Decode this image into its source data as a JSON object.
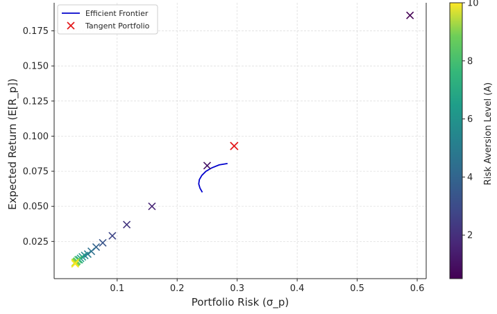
{
  "chart_data": {
    "type": "scatter",
    "xlabel": "Portfolio Risk (σ_p)",
    "ylabel": "Expected Return (E[R_p])",
    "xlim": [
      -0.005,
      0.615
    ],
    "ylim": [
      -0.0015,
      0.195
    ],
    "x_ticks": [
      "0.1",
      "0.2",
      "0.3",
      "0.4",
      "0.5",
      "0.6"
    ],
    "x_tick_values": [
      0.1,
      0.2,
      0.3,
      0.4,
      0.5,
      0.6
    ],
    "y_ticks": [
      "0.025",
      "0.050",
      "0.075",
      "0.100",
      "0.125",
      "0.150",
      "0.175"
    ],
    "y_tick_values": [
      0.025,
      0.05,
      0.075,
      0.1,
      0.125,
      0.15,
      0.175
    ],
    "grid": true,
    "legend_position": "top-left",
    "legend": [
      {
        "label": "Efficient Frontier",
        "symbol": "line",
        "color": "#0000cc"
      },
      {
        "label": "Tangent Portfolio",
        "symbol": "x",
        "color": "#e31a1c"
      }
    ],
    "efficient_frontier": {
      "name": "Efficient Frontier",
      "color": "#0000cc",
      "x": [
        0.242,
        0.238,
        0.236,
        0.237,
        0.241,
        0.248,
        0.258,
        0.27,
        0.284
      ],
      "y": [
        0.06,
        0.063,
        0.066,
        0.069,
        0.072,
        0.075,
        0.0775,
        0.0795,
        0.0805
      ]
    },
    "tangent_portfolio": {
      "name": "Tangent Portfolio",
      "color": "#e31a1c",
      "x": 0.295,
      "y": 0.093
    },
    "risk_aversion_points": {
      "A": [
        0.5,
        1.0,
        1.5,
        2.0,
        2.5,
        3.0,
        3.5,
        4.0,
        4.5,
        5.0,
        5.5,
        6.0,
        6.5,
        7.0,
        7.5,
        8.0,
        8.5,
        9.0,
        9.5,
        10.0
      ],
      "x": [
        0.588,
        0.25,
        0.158,
        0.116,
        0.092,
        0.076,
        0.065,
        0.057,
        0.051,
        0.046,
        0.042,
        0.039,
        0.037,
        0.035,
        0.033,
        0.032,
        0.031,
        0.03,
        0.03,
        0.03
      ],
      "y": [
        0.186,
        0.079,
        0.05,
        0.037,
        0.029,
        0.024,
        0.021,
        0.018,
        0.016,
        0.015,
        0.014,
        0.013,
        0.012,
        0.012,
        0.011,
        0.0105,
        0.01,
        0.01,
        0.0095,
        0.009
      ]
    },
    "colorbar": {
      "label": "Risk Aversion Level (A)",
      "range": [
        0.5,
        10
      ],
      "ticks": [
        "2",
        "4",
        "6",
        "8",
        "10"
      ],
      "tick_values": [
        2,
        4,
        6,
        8,
        10
      ]
    }
  }
}
